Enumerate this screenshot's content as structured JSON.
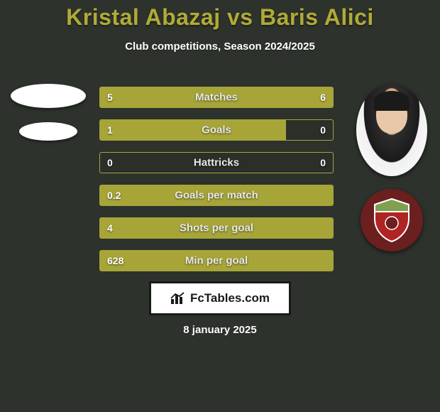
{
  "title_color": "#b0ab36",
  "title": "Kristal Abazaj vs Baris Alici",
  "subtitle": "Club competitions, Season 2024/2025",
  "date": "8 january 2025",
  "footer_label": "FcTables.com",
  "colors": {
    "background": "#2d322c",
    "bar_fill": "#a7a538",
    "bar_border": "#a7a538",
    "text": "#ffffff",
    "label": "#e8e8e8"
  },
  "club_badge": {
    "background": "#6b1f1f",
    "shield_top": "#7fa04f",
    "shield_bottom": "#b02424",
    "shield_border": "#ffffff"
  },
  "stats": [
    {
      "label": "Matches",
      "left_val": "5",
      "right_val": "6",
      "left_pct": 45,
      "right_pct": 55
    },
    {
      "label": "Goals",
      "left_val": "1",
      "right_val": "0",
      "left_pct": 80,
      "right_pct": 0
    },
    {
      "label": "Hattricks",
      "left_val": "0",
      "right_val": "0",
      "left_pct": 0,
      "right_pct": 0
    },
    {
      "label": "Goals per match",
      "left_val": "0.2",
      "right_val": "",
      "left_pct": 100,
      "right_pct": 0
    },
    {
      "label": "Shots per goal",
      "left_val": "4",
      "right_val": "",
      "left_pct": 100,
      "right_pct": 0
    },
    {
      "label": "Min per goal",
      "left_val": "628",
      "right_val": "",
      "left_pct": 100,
      "right_pct": 0
    }
  ]
}
